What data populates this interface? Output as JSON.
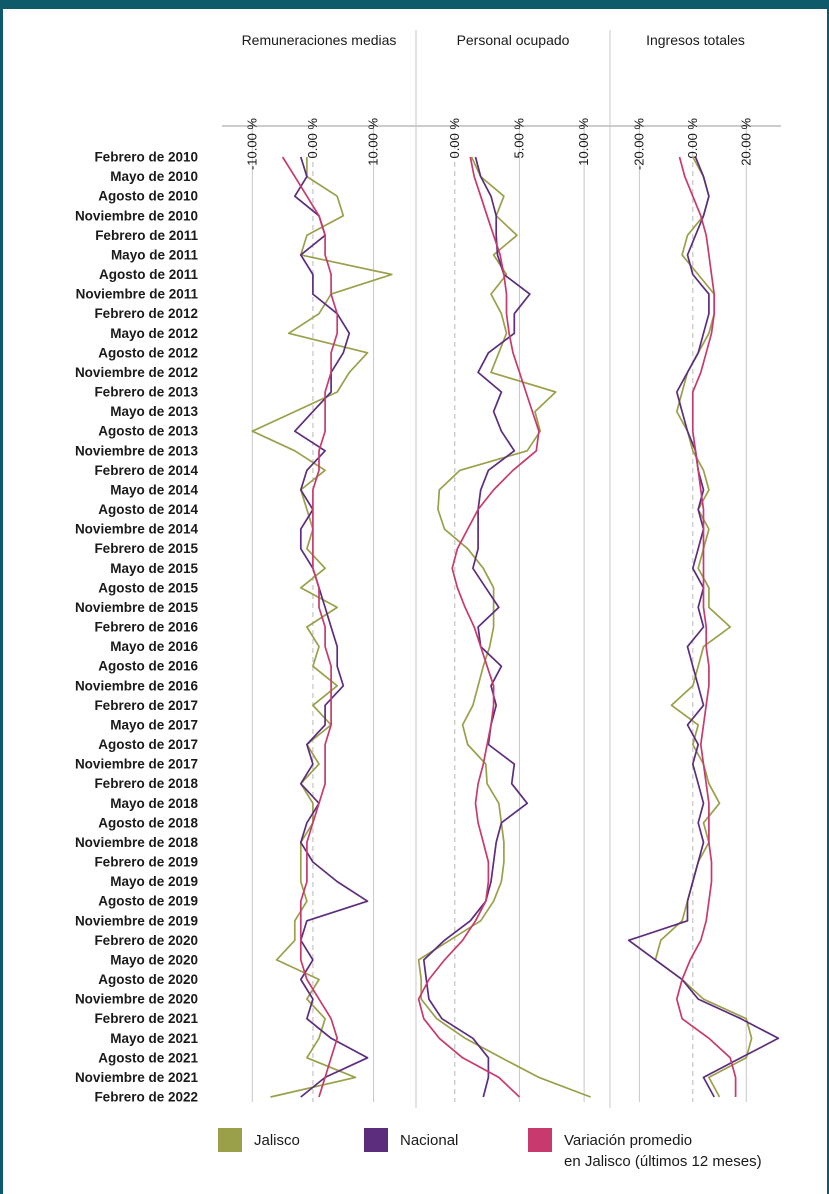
{
  "chart_data": {
    "type": "line",
    "orientation": "horizontal-values, vertical-time",
    "colors": {
      "jalisco": "#9aa04a",
      "nacional": "#5c2d7c",
      "promedio": "#c83a6e",
      "grid": "#c8c8c8",
      "zero": "#b8b8b8"
    },
    "row_labels": [
      "Febrero de 2010",
      "Mayo de 2010",
      "Agosto de 2010",
      "Noviembre de 2010",
      "Febrero de 2011",
      "Mayo de 2011",
      "Agosto de 2011",
      "Noviembre de 2011",
      "Febrero de 2012",
      "Mayo de 2012",
      "Agosto de 2012",
      "Noviembre de 2012",
      "Febrero de 2013",
      "Mayo de 2013",
      "Agosto de 2013",
      "Noviembre de 2013",
      "Febrero de 2014",
      "Mayo de 2014",
      "Agosto de 2014",
      "Noviembre de 2014",
      "Febrero de 2015",
      "Mayo de 2015",
      "Agosto de 2015",
      "Noviembre de 2015",
      "Febrero de 2016",
      "Mayo de 2016",
      "Agosto de 2016",
      "Noviembre de 2016",
      "Febrero de 2017",
      "Mayo de 2017",
      "Agosto de 2017",
      "Noviembre de 2017",
      "Febrero de 2018",
      "Mayo de 2018",
      "Agosto de 2018",
      "Noviembre de 2018",
      "Febrero de 2019",
      "Mayo de 2019",
      "Agosto de 2019",
      "Noviembre de 2019",
      "Febrero de 2020",
      "Mayo de 2020",
      "Agosto de 2020",
      "Noviembre de 2020",
      "Febrero de 2021",
      "Mayo de 2021",
      "Agosto de 2021",
      "Noviembre de 2021",
      "Febrero de 2022"
    ],
    "panels": [
      {
        "title": "Remuneraciones medias",
        "ticks": [
          -10,
          0,
          10
        ],
        "tick_labels": [
          "-10.00 %",
          "0.00 %",
          "10.00 %"
        ],
        "xlim": [
          -15,
          17
        ],
        "series": [
          {
            "name": "Jalisco",
            "values": [
              -1,
              -1,
              4,
              5,
              -1,
              -2,
              13,
              3,
              1,
              -4,
              9,
              6,
              4,
              -3,
              -10,
              -3,
              2,
              -2,
              -1,
              0,
              -1,
              2,
              -2,
              4,
              -1,
              1,
              0,
              4,
              0,
              3,
              -1,
              1,
              -2,
              0,
              0,
              -2,
              -2,
              -2,
              -1,
              -3,
              -3,
              -6,
              1,
              -1,
              2,
              1,
              -1,
              7,
              -7
            ]
          },
          {
            "name": "Nacional",
            "values": [
              -2,
              -1,
              -3,
              1,
              2,
              -2,
              0,
              0,
              4,
              6,
              5,
              3,
              3,
              0,
              -3,
              2,
              -1,
              -2,
              0,
              -2,
              -2,
              0,
              1,
              2,
              3,
              4,
              4,
              5,
              2,
              2,
              -1,
              0,
              -2,
              1,
              -1,
              -2,
              0,
              4,
              9,
              -1,
              -2,
              0,
              -2,
              0,
              -1,
              3,
              9,
              2,
              -2
            ]
          },
          {
            "name": "Variación promedio en Jalisco (últimos 12 meses)",
            "values": [
              -5,
              -3,
              -1,
              1,
              2,
              2,
              3,
              3,
              4,
              4,
              3,
              3,
              2,
              2,
              2,
              1,
              1,
              0,
              0,
              0,
              0,
              0,
              1,
              1,
              2,
              2,
              3,
              3,
              3,
              3,
              2,
              2,
              2,
              1,
              0,
              -1,
              -1,
              -1,
              -2,
              -2,
              -2,
              -2,
              -1,
              1,
              3,
              4,
              3,
              2,
              1
            ]
          }
        ]
      },
      {
        "title": "Personal ocupado",
        "ticks": [
          0,
          5,
          10
        ],
        "tick_labels": [
          "0.00 %",
          "5.00 %",
          "10.00 %"
        ],
        "xlim": [
          -3,
          12
        ],
        "series": [
          {
            "name": "Jalisco",
            "values": [
              1.3,
              2.0,
              3.8,
              3.2,
              4.8,
              3.0,
              4.0,
              2.8,
              3.6,
              4.0,
              3.4,
              2.8,
              7.8,
              6.2,
              6.6,
              5.6,
              0.4,
              -1.2,
              -1.3,
              -0.8,
              1.0,
              2.2,
              3.0,
              3.0,
              3.0,
              2.7,
              2.2,
              1.8,
              1.4,
              0.6,
              1.0,
              2.4,
              2.5,
              3.4,
              3.6,
              3.8,
              3.8,
              3.6,
              3.0,
              2.0,
              -0.4,
              -2.8,
              -2.6,
              -2.6,
              -1.4,
              0.8,
              3.6,
              6.5,
              10.5
            ]
          },
          {
            "name": "Nacional",
            "values": [
              1.6,
              2.0,
              2.8,
              3.2,
              3.2,
              3.3,
              3.8,
              5.8,
              4.6,
              4.6,
              2.6,
              1.8,
              3.6,
              3.0,
              3.6,
              4.6,
              2.6,
              2.0,
              1.8,
              1.8,
              1.8,
              1.4,
              2.4,
              3.4,
              1.8,
              2.0,
              3.6,
              2.8,
              3.2,
              2.8,
              2.6,
              4.6,
              4.4,
              5.6,
              3.6,
              3.2,
              3.0,
              2.8,
              2.4,
              1.2,
              -0.8,
              -2.4,
              -2.2,
              -2.0,
              -1.0,
              1.4,
              2.6,
              2.6,
              2.2
            ]
          },
          {
            "name": "Variación promedio en Jalisco (últimos 12 meses)",
            "values": [
              1.2,
              1.5,
              2.0,
              2.5,
              3.0,
              3.5,
              3.8,
              4.0,
              4.0,
              4.2,
              4.5,
              5.0,
              5.5,
              6.0,
              6.5,
              6.3,
              4.5,
              3.0,
              1.8,
              1.0,
              0.2,
              -0.2,
              0.2,
              0.8,
              1.5,
              2.0,
              2.5,
              3.0,
              3.0,
              2.8,
              2.5,
              2.2,
              1.8,
              1.6,
              1.8,
              2.2,
              2.6,
              2.6,
              2.4,
              1.6,
              0.6,
              -0.8,
              -2.0,
              -2.8,
              -2.4,
              -1.2,
              0.6,
              3.4,
              5.0
            ]
          }
        ]
      },
      {
        "title": "Ingresos totales",
        "ticks": [
          -20,
          0,
          20
        ],
        "tick_labels": [
          "-20.00 %",
          "0.00 %",
          "20.00 %"
        ],
        "xlim": [
          -31,
          33
        ],
        "series": [
          {
            "name": "Jalisco",
            "values": [
              0,
              4,
              6,
              4,
              -2,
              -4,
              2,
              8,
              8,
              6,
              2,
              -2,
              -4,
              -6,
              -2,
              0,
              4,
              6,
              2,
              6,
              4,
              2,
              6,
              6,
              14,
              4,
              2,
              0,
              -8,
              2,
              0,
              4,
              6,
              10,
              4,
              6,
              2,
              0,
              -2,
              -4,
              -12,
              -14,
              -4,
              4,
              20,
              22,
              20,
              6,
              10
            ]
          },
          {
            "name": "Nacional",
            "values": [
              1,
              4,
              6,
              4,
              1,
              -2,
              0,
              6,
              6,
              4,
              2,
              -2,
              -6,
              -4,
              -2,
              1,
              2,
              4,
              2,
              4,
              2,
              0,
              4,
              2,
              4,
              -2,
              0,
              2,
              4,
              -2,
              2,
              0,
              2,
              4,
              2,
              4,
              2,
              0,
              -2,
              -2,
              -24,
              -14,
              -4,
              2,
              18,
              32,
              18,
              4,
              8
            ]
          },
          {
            "name": "Variación promedio en Jalisco (últimos 12 meses)",
            "values": [
              -5,
              -3,
              0,
              3,
              5,
              6,
              7,
              8,
              8,
              7,
              5,
              3,
              0,
              0,
              0,
              1,
              2,
              3,
              4,
              4,
              4,
              4,
              4,
              4,
              5,
              5,
              6,
              6,
              5,
              4,
              3,
              4,
              5,
              6,
              6,
              6,
              7,
              7,
              6,
              5,
              3,
              -1,
              -4,
              -6,
              -4,
              6,
              14,
              16,
              16
            ]
          }
        ]
      }
    ],
    "legend": [
      {
        "label": "Jalisco",
        "color": "#9aa04a"
      },
      {
        "label": "Nacional",
        "color": "#5c2d7c"
      },
      {
        "label_lines": [
          "Variación promedio",
          "en Jalisco (últimos 12 meses)"
        ],
        "color": "#c83a6e"
      }
    ],
    "legend_position": "bottom"
  }
}
